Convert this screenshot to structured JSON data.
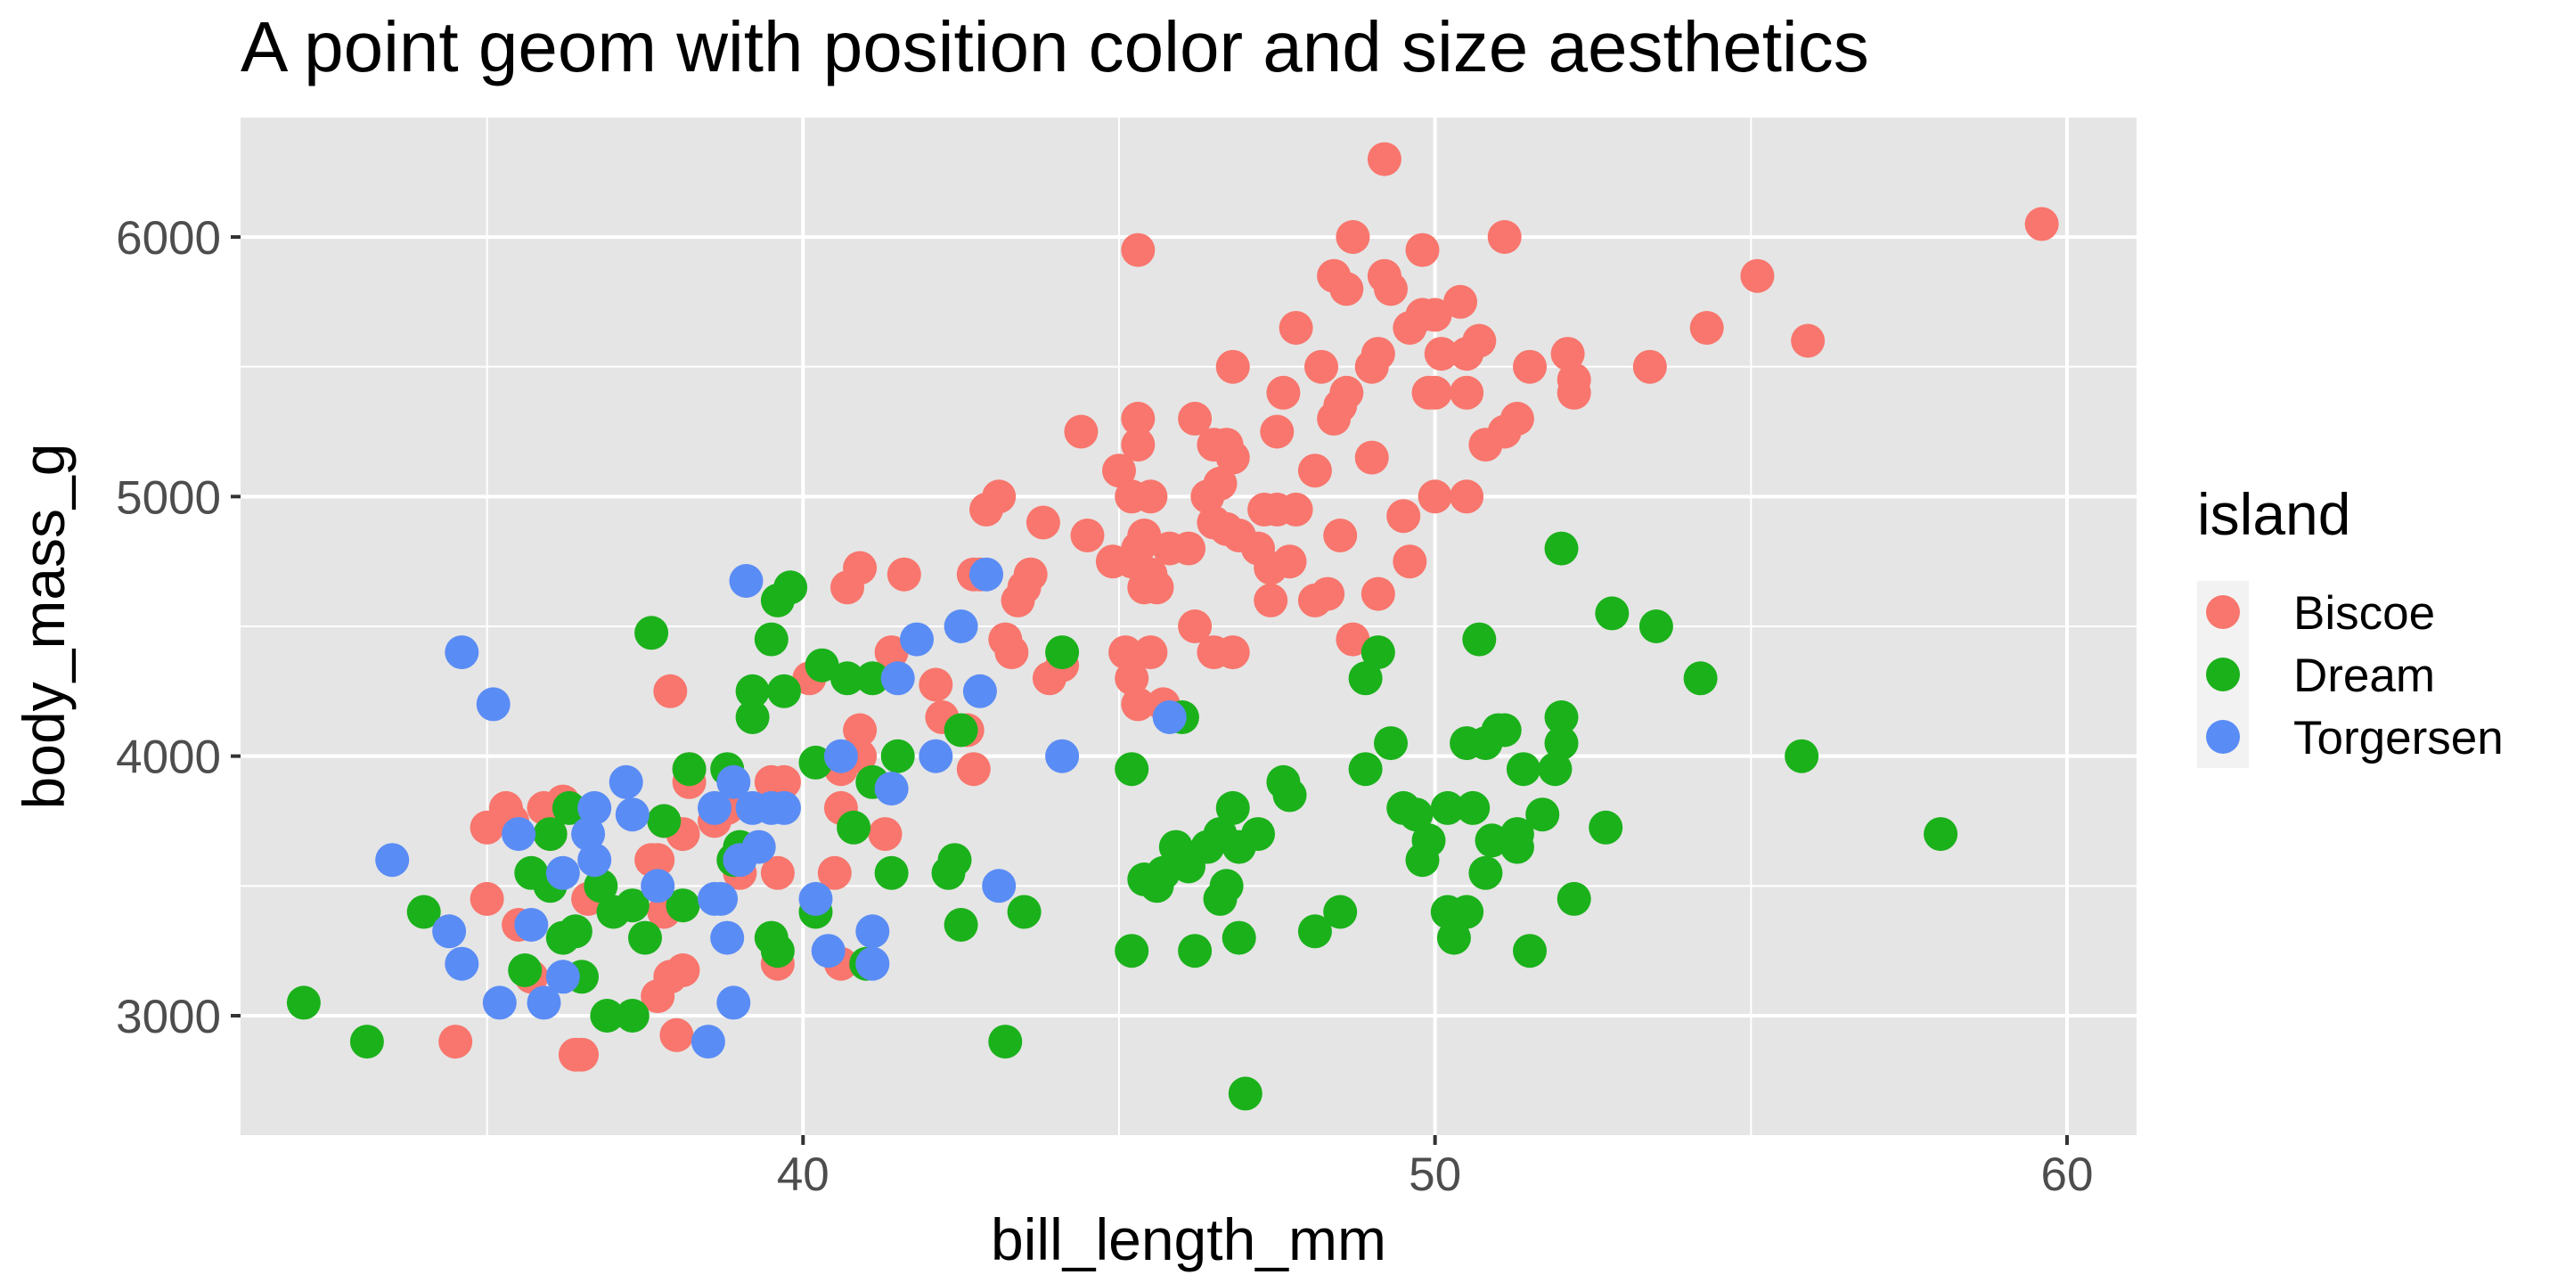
{
  "chart_data": {
    "type": "scatter",
    "title": "A point geom with position color and size aesthetics",
    "xlabel": "bill_length_mm",
    "ylabel": "body_mass_g",
    "xlim": [
      31.1,
      61.1
    ],
    "ylim": [
      2540,
      6460
    ],
    "x_ticks": [
      40,
      50,
      60
    ],
    "y_ticks": [
      3000,
      4000,
      5000,
      6000
    ],
    "x_tick_labels": [
      "40",
      "50",
      "60"
    ],
    "y_tick_labels": [
      "3000",
      "4000",
      "5000",
      "6000"
    ],
    "grid": true,
    "legend": {
      "title": "island",
      "position": "right",
      "entries": [
        "Biscoe",
        "Dream",
        "Torgersen"
      ]
    },
    "colors": {
      "Biscoe": "#F8766D",
      "Dream": "#1BB11B",
      "Torgersen": "#5A8CF5",
      "panel": "#E5E5E5",
      "grid": "#FFFFFF"
    },
    "series": [
      {
        "name": "Biscoe",
        "points": [
          [
            59.6,
            6050
          ],
          [
            55.1,
            5850
          ],
          [
            55.9,
            5600
          ],
          [
            54.3,
            5650
          ],
          [
            53.4,
            5500
          ],
          [
            52.2,
            5450
          ],
          [
            52.1,
            5550
          ],
          [
            52.2,
            5400
          ],
          [
            51.5,
            5500
          ],
          [
            51.3,
            5300
          ],
          [
            51.1,
            5250
          ],
          [
            50.8,
            5200
          ],
          [
            51.1,
            6000
          ],
          [
            50.7,
            5600
          ],
          [
            50.5,
            5550
          ],
          [
            50.4,
            5750
          ],
          [
            50.1,
            5550
          ],
          [
            50.0,
            5700
          ],
          [
            49.8,
            5700
          ],
          [
            50.0,
            5400
          ],
          [
            50.5,
            5400
          ],
          [
            49.9,
            5400
          ],
          [
            49.6,
            5650
          ],
          [
            49.2,
            5850
          ],
          [
            49.3,
            5800
          ],
          [
            49.1,
            5550
          ],
          [
            49.8,
            5950
          ],
          [
            49.2,
            6300
          ],
          [
            48.7,
            6000
          ],
          [
            48.4,
            5850
          ],
          [
            48.6,
            5800
          ],
          [
            48.5,
            5350
          ],
          [
            48.6,
            5400
          ],
          [
            48.4,
            5300
          ],
          [
            49.0,
            5500
          ],
          [
            49.0,
            5150
          ],
          [
            48.2,
            5500
          ],
          [
            48.1,
            5100
          ],
          [
            47.8,
            5650
          ],
          [
            47.6,
            5400
          ],
          [
            47.5,
            5250
          ],
          [
            46.8,
            5500
          ],
          [
            46.7,
            5200
          ],
          [
            46.5,
            5200
          ],
          [
            46.8,
            5150
          ],
          [
            46.2,
            5300
          ],
          [
            46.4,
            5000
          ],
          [
            46.6,
            5050
          ],
          [
            47.3,
            4950
          ],
          [
            47.5,
            4950
          ],
          [
            47.8,
            4950
          ],
          [
            47.2,
            4800
          ],
          [
            46.9,
            4850
          ],
          [
            46.7,
            4875
          ],
          [
            46.5,
            4900
          ],
          [
            46.1,
            4800
          ],
          [
            45.8,
            4800
          ],
          [
            45.5,
            4700
          ],
          [
            45.6,
            4650
          ],
          [
            45.4,
            4650
          ],
          [
            46.2,
            4500
          ],
          [
            46.5,
            4400
          ],
          [
            46.8,
            4400
          ],
          [
            45.5,
            4400
          ],
          [
            45.1,
            4400
          ],
          [
            45.2,
            4300
          ],
          [
            45.3,
            4200
          ],
          [
            45.7,
            4200
          ],
          [
            44.9,
            4750
          ],
          [
            45.2,
            4750
          ],
          [
            45.3,
            4800
          ],
          [
            45.4,
            4850
          ],
          [
            44.5,
            4850
          ],
          [
            45.0,
            5100
          ],
          [
            45.2,
            5000
          ],
          [
            45.5,
            5000
          ],
          [
            45.3,
            5200
          ],
          [
            45.3,
            5300
          ],
          [
            44.4,
            5250
          ],
          [
            45.3,
            5950
          ],
          [
            47.4,
            4600
          ],
          [
            48.1,
            4600
          ],
          [
            48.3,
            4625
          ],
          [
            48.5,
            4850
          ],
          [
            48.7,
            4450
          ],
          [
            49.1,
            4625
          ],
          [
            49.5,
            4925
          ],
          [
            49.6,
            4750
          ],
          [
            50.0,
            5000
          ],
          [
            50.5,
            5000
          ],
          [
            47.4,
            4725
          ],
          [
            47.7,
            4750
          ],
          [
            43.2,
            4450
          ],
          [
            43.3,
            4400
          ],
          [
            43.4,
            4600
          ],
          [
            43.5,
            4650
          ],
          [
            43.6,
            4700
          ],
          [
            43.8,
            4900
          ],
          [
            42.9,
            4950
          ],
          [
            42.7,
            4700
          ],
          [
            42.8,
            4700
          ],
          [
            43.1,
            5000
          ],
          [
            43.9,
            4300
          ],
          [
            44.1,
            4350
          ],
          [
            42.2,
            4150
          ],
          [
            42.1,
            4275
          ],
          [
            42.6,
            4100
          ],
          [
            42.7,
            3950
          ],
          [
            41.6,
            4700
          ],
          [
            40.7,
            4650
          ],
          [
            40.9,
            4725
          ],
          [
            41.4,
            4400
          ],
          [
            40.9,
            4100
          ],
          [
            40.9,
            4000
          ],
          [
            40.6,
            3950
          ],
          [
            40.1,
            4300
          ],
          [
            41.3,
            3700
          ],
          [
            40.6,
            3800
          ],
          [
            40.5,
            3550
          ],
          [
            40.6,
            3200
          ],
          [
            39.6,
            3550
          ],
          [
            39.6,
            3200
          ],
          [
            39.7,
            3900
          ],
          [
            39.5,
            3900
          ],
          [
            39.0,
            3550
          ],
          [
            38.8,
            3800
          ],
          [
            38.6,
            3750
          ],
          [
            38.2,
            3950
          ],
          [
            38.2,
            3900
          ],
          [
            38.1,
            3700
          ],
          [
            37.8,
            3750
          ],
          [
            37.6,
            3600
          ],
          [
            37.7,
            3600
          ],
          [
            37.8,
            3400
          ],
          [
            37.9,
            4250
          ],
          [
            37.7,
            3075
          ],
          [
            38.1,
            3175
          ],
          [
            37.9,
            3150
          ],
          [
            38.0,
            2925
          ],
          [
            36.5,
            2850
          ],
          [
            36.4,
            2850
          ],
          [
            34.5,
            2900
          ],
          [
            35.0,
            3450
          ],
          [
            35.0,
            3725
          ],
          [
            35.3,
            3800
          ],
          [
            35.5,
            3350
          ],
          [
            35.9,
            3800
          ],
          [
            36.2,
            3825
          ],
          [
            36.6,
            3450
          ],
          [
            35.7,
            3150
          ],
          [
            35.4,
            3750
          ],
          [
            36.0,
            3700
          ]
        ]
      },
      {
        "name": "Dream",
        "points": [
          [
            32.1,
            3050
          ],
          [
            33.1,
            2900
          ],
          [
            34.0,
            3400
          ],
          [
            35.6,
            3175
          ],
          [
            35.7,
            3550
          ],
          [
            36.0,
            3700
          ],
          [
            36.0,
            3500
          ],
          [
            36.2,
            3300
          ],
          [
            36.3,
            3800
          ],
          [
            36.4,
            3325
          ],
          [
            36.5,
            3150
          ],
          [
            36.8,
            3500
          ],
          [
            37.0,
            3400
          ],
          [
            36.9,
            3000
          ],
          [
            37.3,
            3000
          ],
          [
            37.5,
            3300
          ],
          [
            37.3,
            3425
          ],
          [
            37.8,
            3750
          ],
          [
            38.1,
            3425
          ],
          [
            38.2,
            3950
          ],
          [
            38.8,
            3950
          ],
          [
            39.0,
            3650
          ],
          [
            38.9,
            3600
          ],
          [
            39.2,
            4250
          ],
          [
            39.2,
            4150
          ],
          [
            39.6,
            4600
          ],
          [
            39.5,
            4450
          ],
          [
            39.7,
            4250
          ],
          [
            39.8,
            4650
          ],
          [
            39.5,
            3300
          ],
          [
            39.6,
            3250
          ],
          [
            40.2,
            3400
          ],
          [
            40.2,
            3975
          ],
          [
            40.3,
            4350
          ],
          [
            40.7,
            4300
          ],
          [
            40.8,
            3725
          ],
          [
            41.1,
            3900
          ],
          [
            41.1,
            4300
          ],
          [
            41.5,
            4000
          ],
          [
            41.4,
            3550
          ],
          [
            41.0,
            3200
          ],
          [
            42.3,
            3550
          ],
          [
            42.4,
            3600
          ],
          [
            42.5,
            3350
          ],
          [
            42.5,
            4100
          ],
          [
            43.2,
            2900
          ],
          [
            43.5,
            3400
          ],
          [
            44.1,
            4400
          ],
          [
            37.6,
            4475
          ],
          [
            45.2,
            3950
          ],
          [
            45.2,
            3250
          ],
          [
            45.4,
            3525
          ],
          [
            45.6,
            3500
          ],
          [
            45.7,
            3550
          ],
          [
            45.9,
            3650
          ],
          [
            46.1,
            3575
          ],
          [
            46.0,
            4150
          ],
          [
            46.2,
            3250
          ],
          [
            46.4,
            3650
          ],
          [
            46.6,
            3700
          ],
          [
            46.7,
            3500
          ],
          [
            46.6,
            3450
          ],
          [
            46.8,
            3800
          ],
          [
            46.9,
            3650
          ],
          [
            47.0,
            2700
          ],
          [
            46.9,
            3300
          ],
          [
            47.2,
            3700
          ],
          [
            47.6,
            3900
          ],
          [
            47.7,
            3850
          ],
          [
            48.1,
            3325
          ],
          [
            48.5,
            3400
          ],
          [
            48.9,
            4300
          ],
          [
            49.1,
            4400
          ],
          [
            49.3,
            4050
          ],
          [
            48.9,
            3950
          ],
          [
            49.5,
            3800
          ],
          [
            49.7,
            3775
          ],
          [
            49.8,
            3600
          ],
          [
            49.9,
            3675
          ],
          [
            50.2,
            3400
          ],
          [
            50.3,
            3300
          ],
          [
            50.5,
            3400
          ],
          [
            50.2,
            3800
          ],
          [
            50.6,
            3800
          ],
          [
            50.8,
            3550
          ],
          [
            50.9,
            3675
          ],
          [
            51.0,
            4100
          ],
          [
            51.1,
            4100
          ],
          [
            50.5,
            4050
          ],
          [
            50.8,
            4050
          ],
          [
            50.7,
            4450
          ],
          [
            51.3,
            3650
          ],
          [
            51.3,
            3700
          ],
          [
            51.4,
            3950
          ],
          [
            51.5,
            3250
          ],
          [
            51.7,
            3775
          ],
          [
            51.9,
            3950
          ],
          [
            52.0,
            4050
          ],
          [
            52.0,
            4150
          ],
          [
            52.0,
            4800
          ],
          [
            52.2,
            3450
          ],
          [
            52.7,
            3725
          ],
          [
            52.8,
            4550
          ],
          [
            53.5,
            4500
          ],
          [
            54.2,
            4300
          ],
          [
            55.8,
            4000
          ],
          [
            58.0,
            3700
          ]
        ]
      },
      {
        "name": "Torgersen",
        "points": [
          [
            33.5,
            3600
          ],
          [
            34.4,
            3325
          ],
          [
            34.6,
            3200
          ],
          [
            34.6,
            4400
          ],
          [
            35.1,
            4200
          ],
          [
            35.2,
            3050
          ],
          [
            35.5,
            3700
          ],
          [
            35.7,
            3350
          ],
          [
            35.9,
            3050
          ],
          [
            36.2,
            3150
          ],
          [
            36.2,
            3550
          ],
          [
            36.6,
            3700
          ],
          [
            36.7,
            3600
          ],
          [
            36.7,
            3800
          ],
          [
            37.2,
            3900
          ],
          [
            37.3,
            3775
          ],
          [
            37.7,
            3500
          ],
          [
            38.5,
            2900
          ],
          [
            38.6,
            3450
          ],
          [
            38.6,
            3800
          ],
          [
            38.7,
            3450
          ],
          [
            38.8,
            3300
          ],
          [
            38.9,
            3900
          ],
          [
            38.9,
            3050
          ],
          [
            39.0,
            3600
          ],
          [
            39.1,
            4675
          ],
          [
            39.2,
            3800
          ],
          [
            39.3,
            3650
          ],
          [
            39.5,
            3800
          ],
          [
            39.7,
            3800
          ],
          [
            40.2,
            3450
          ],
          [
            40.4,
            3250
          ],
          [
            40.6,
            4000
          ],
          [
            41.1,
            3325
          ],
          [
            41.1,
            3200
          ],
          [
            41.4,
            3875
          ],
          [
            41.5,
            4300
          ],
          [
            41.8,
            4450
          ],
          [
            42.1,
            4000
          ],
          [
            42.5,
            4500
          ],
          [
            42.8,
            4250
          ],
          [
            42.9,
            4700
          ],
          [
            43.1,
            3500
          ],
          [
            44.1,
            4000
          ],
          [
            45.8,
            4150
          ]
        ]
      }
    ]
  }
}
